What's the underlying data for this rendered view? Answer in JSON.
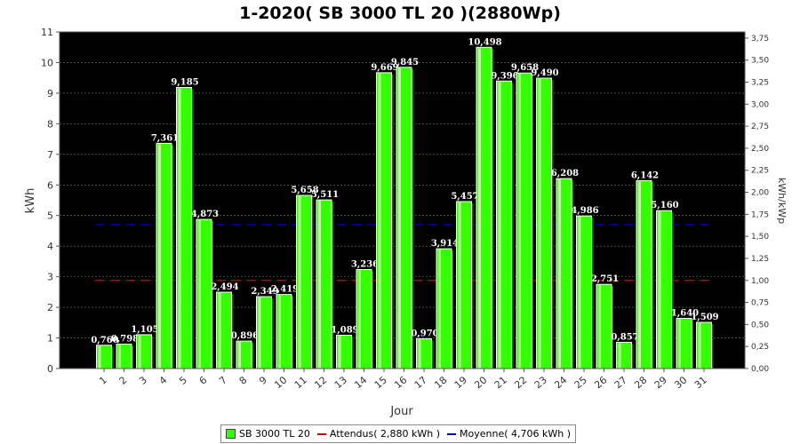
{
  "chart_data": {
    "type": "bar",
    "title": "1-2020( SB 3000 TL 20 )(2880Wp)",
    "xlabel": "Jour",
    "ylabel": "kWh",
    "y2label": "kWh/kWp",
    "ylim": [
      0,
      11
    ],
    "y2lim": [
      0,
      3.8194
    ],
    "yticks": [
      "0",
      "1",
      "2",
      "3",
      "4",
      "5",
      "6",
      "7",
      "8",
      "9",
      "10",
      "11"
    ],
    "y2ticks": [
      "0,00",
      "0,25",
      "0,50",
      "0,75",
      "1,00",
      "1,25",
      "1,50",
      "1,75",
      "2,00",
      "2,25",
      "2,50",
      "2,75",
      "3,00",
      "3,25",
      "3,50",
      "3,75"
    ],
    "categories": [
      "1",
      "2",
      "3",
      "4",
      "5",
      "6",
      "7",
      "8",
      "9",
      "10",
      "11",
      "12",
      "13",
      "14",
      "15",
      "16",
      "17",
      "18",
      "19",
      "20",
      "21",
      "22",
      "23",
      "24",
      "25",
      "26",
      "27",
      "28",
      "29",
      "30",
      "31"
    ],
    "series": [
      {
        "name": "SB 3000 TL 20",
        "color": "#33ff00",
        "values": [
          0.76,
          0.798,
          1.105,
          7.361,
          9.185,
          4.873,
          2.494,
          0.896,
          2.349,
          2.419,
          5.658,
          5.511,
          1.089,
          3.236,
          9.669,
          9.845,
          0.97,
          3.914,
          5.457,
          10.498,
          9.396,
          9.658,
          9.49,
          6.208,
          4.986,
          2.751,
          0.857,
          6.142,
          5.16,
          1.64,
          1.509
        ],
        "labels": [
          "0,760",
          "0,798",
          "1,105",
          "7,361",
          "9,185",
          "4,873",
          "2,494",
          "0,896",
          "2,349",
          "2,419",
          "5,658",
          "5,511",
          "1,089",
          "3,236",
          "9,669",
          "9,845",
          "0,970",
          "3,914",
          "5,457",
          "10,498",
          "9,396",
          "9,658",
          "9,490",
          "6,208",
          "4,986",
          "2,751",
          "0,857",
          "6,142",
          "5,160",
          "1,640",
          "1,509"
        ]
      }
    ],
    "reference_lines": [
      {
        "name": "Attendus( 2,880 kWh )",
        "value": 2.88,
        "color": "#dd0000"
      },
      {
        "name": "Moyenne( 4,706 kWh )",
        "value": 4.706,
        "color": "#0000cc"
      }
    ],
    "background": "#000000",
    "grid": true,
    "legend_position": "bottom"
  }
}
